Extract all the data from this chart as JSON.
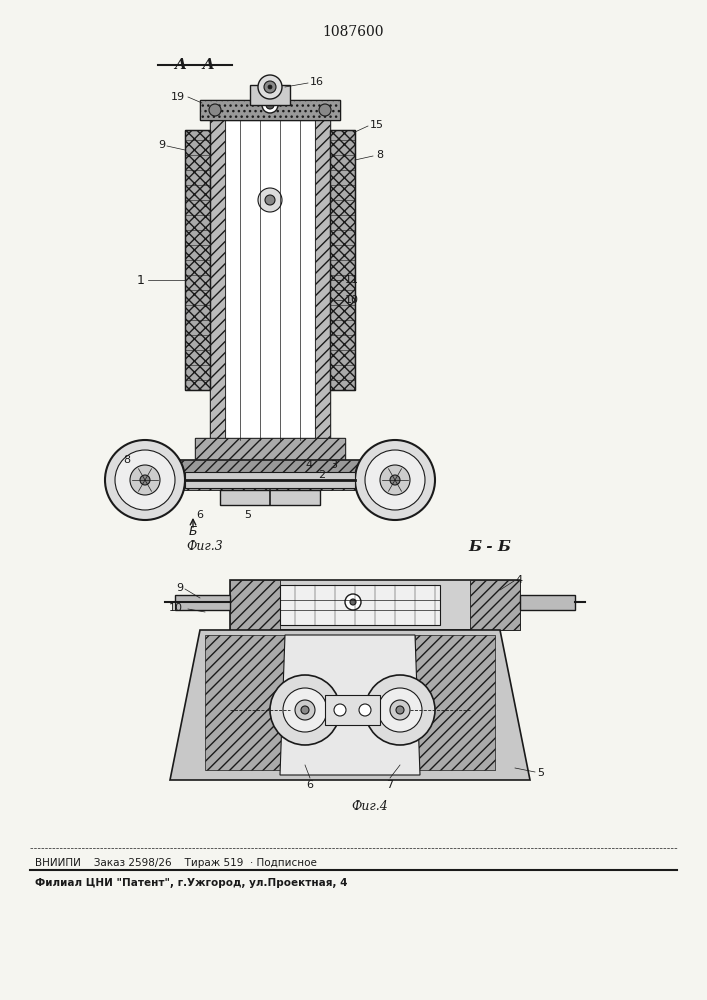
{
  "patent_number": "1087600",
  "section_label_top": "A - A",
  "section_label_bottom": "Б - Б",
  "fig3_label": "Фиг.3",
  "fig4_label": "Фиг.4",
  "footer_line1": "ВНИИПИ    Заказ 2598/26    Тираж 519  · Подписное",
  "footer_line2": "Филиал ЦНИ \"Патент\", г.Ужгород, ул.Проектная, 4",
  "bg_color": "#f5f5f0",
  "line_color": "#1a1a1a",
  "fig_width": 7.07,
  "fig_height": 10.0,
  "dpi": 100
}
